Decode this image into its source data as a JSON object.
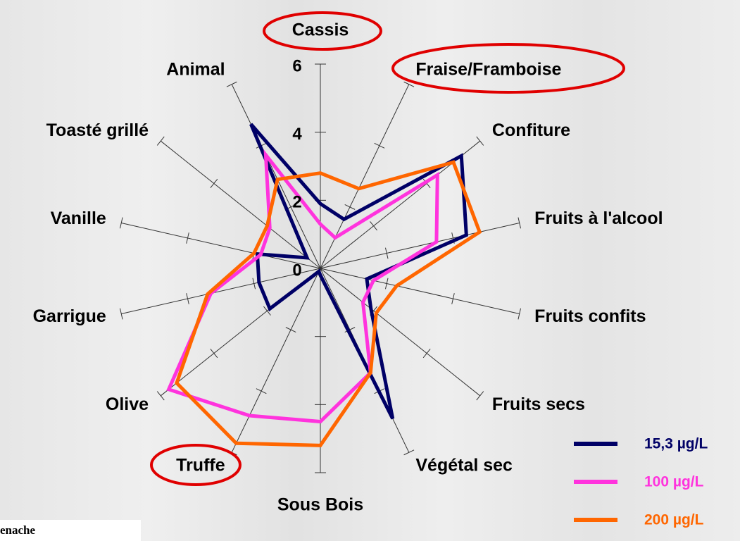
{
  "chart_data": {
    "type": "radar",
    "categories": [
      "Cassis",
      "Fraise/Framboise",
      "Confiture",
      "Fruits à l'alcool",
      "Fruits confits",
      "Fruits secs",
      "Végétal sec",
      "Sous Bois",
      "Truffe",
      "Olive",
      "Garrigue",
      "Vanille",
      "Toasté grillé",
      "Animal"
    ],
    "series": [
      {
        "name": "15,3 µg/L",
        "color": "#000066",
        "values": [
          1.9,
          1.6,
          5.3,
          4.4,
          1.4,
          1.9,
          4.9,
          0.2,
          0.1,
          1.9,
          1.85,
          1.9,
          0.5,
          4.7
        ]
      },
      {
        "name": "100 µg/L",
        "color": "#ff33dd",
        "values": [
          1.3,
          1.0,
          4.4,
          3.5,
          1.6,
          1.6,
          3.4,
          4.5,
          4.8,
          5.7,
          3.3,
          1.8,
          1.9,
          3.7
        ]
      },
      {
        "name": "200 µg/L",
        "color": "#ff6600",
        "values": [
          2.8,
          2.6,
          5.0,
          4.8,
          2.3,
          2.1,
          3.4,
          5.2,
          5.7,
          5.4,
          3.4,
          2.0,
          2.0,
          2.9
        ]
      }
    ],
    "rlim": [
      0,
      6
    ],
    "rticks": [
      0,
      2,
      4,
      6
    ],
    "footnote": "enache"
  }
}
